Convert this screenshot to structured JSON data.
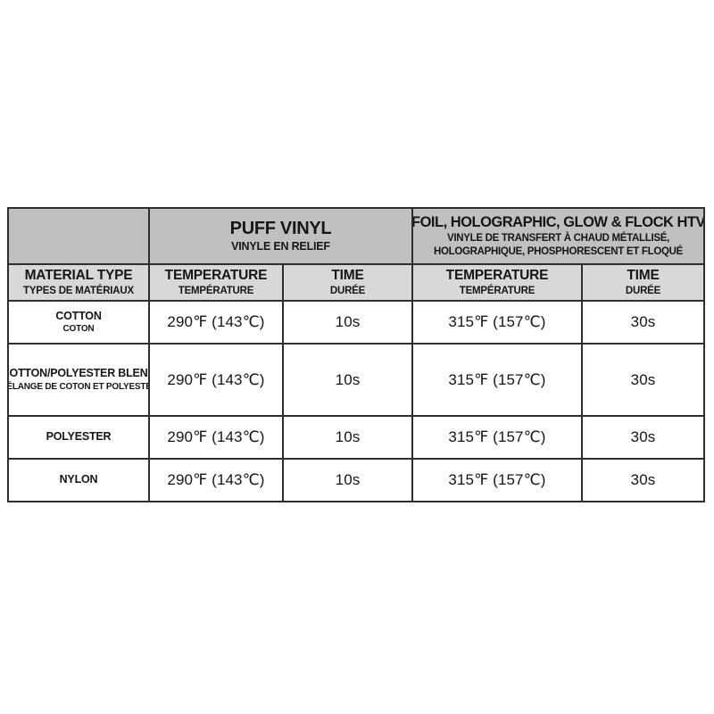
{
  "colors": {
    "group_header_bg": "#bec0c2",
    "column_header_bg": "#d6d8da",
    "border": "#2e2e2e",
    "row_bg": "#ffffff",
    "text": "#161616"
  },
  "table": {
    "group_headers": {
      "puff": {
        "title": "PUFF VINYL",
        "subtitle": "VINYLE EN RELIEF"
      },
      "foil": {
        "title": "FOIL, HOLOGRAPHIC, GLOW & FLOCK HTV",
        "subtitle_line1": "VINYLE DE TRANSFERT À CHAUD MÉTALLISÉ,",
        "subtitle_line2": "HOLOGRAPHIQUE, PHOSPHORESCENT ET FLOQUÉ"
      }
    },
    "column_headers": {
      "material": {
        "en": "MATERIAL TYPE",
        "fr": "TYPES DE MATÉRIAUX"
      },
      "puff_temperature": {
        "en": "TEMPERATURE",
        "fr": "TEMPÉRATURE"
      },
      "puff_time": {
        "en": "TIME",
        "fr": "DURÉE"
      },
      "foil_temperature": {
        "en": "TEMPERATURE",
        "fr": "TEMPÉRATURE"
      },
      "foil_time": {
        "en": "TIME",
        "fr": "DURÉE"
      }
    },
    "rows": [
      {
        "material_en": "COTTON",
        "material_fr": "COTON",
        "puff_temp": "290℉ (143℃)",
        "puff_time": "10s",
        "foil_temp": "315℉ (157℃)",
        "foil_time": "30s"
      },
      {
        "material_en": "COTTON/POLYESTER BLEND",
        "material_fr": "MÉLANGE DE COTON ET POLYESTER",
        "puff_temp": "290℉ (143℃)",
        "puff_time": "10s",
        "foil_temp": "315℉ (157℃)",
        "foil_time": "30s"
      },
      {
        "material_en": "POLYESTER",
        "material_fr": "",
        "puff_temp": "290℉ (143℃)",
        "puff_time": "10s",
        "foil_temp": "315℉ (157℃)",
        "foil_time": "30s"
      },
      {
        "material_en": "NYLON",
        "material_fr": "",
        "puff_temp": "290℉ (143℃)",
        "puff_time": "10s",
        "foil_temp": "315℉ (157℃)",
        "foil_time": "30s"
      }
    ]
  },
  "chart_data": {
    "type": "table",
    "title": "",
    "column_groups": [
      "",
      "PUFF VINYL / VINYLE EN RELIEF",
      "FOIL, HOLOGRAPHIC, GLOW & FLOCK HTV / VINYLE DE TRANSFERT À CHAUD MÉTALLISÉ, HOLOGRAPHIQUE, PHOSPHORESCENT ET FLOQUÉ"
    ],
    "columns": [
      "MATERIAL TYPE / TYPES DE MATÉRIAUX",
      "TEMPERATURE / TEMPÉRATURE (PUFF VINYL)",
      "TIME / DURÉE (PUFF VINYL)",
      "TEMPERATURE / TEMPÉRATURE (FOIL, HOLOGRAPHIC, GLOW & FLOCK HTV)",
      "TIME / DURÉE (FOIL, HOLOGRAPHIC, GLOW & FLOCK HTV)"
    ],
    "rows": [
      [
        "COTTON / COTON",
        "290℉ (143℃)",
        "10s",
        "315℉ (157℃)",
        "30s"
      ],
      [
        "COTTON/POLYESTER BLEND / MÉLANGE DE COTON ET POLYESTER",
        "290℉ (143℃)",
        "10s",
        "315℉ (157℃)",
        "30s"
      ],
      [
        "POLYESTER",
        "290℉ (143℃)",
        "10s",
        "315℉ (157℃)",
        "30s"
      ],
      [
        "NYLON",
        "290℉ (143℃)",
        "10s",
        "315℉ (157℃)",
        "30s"
      ]
    ]
  }
}
